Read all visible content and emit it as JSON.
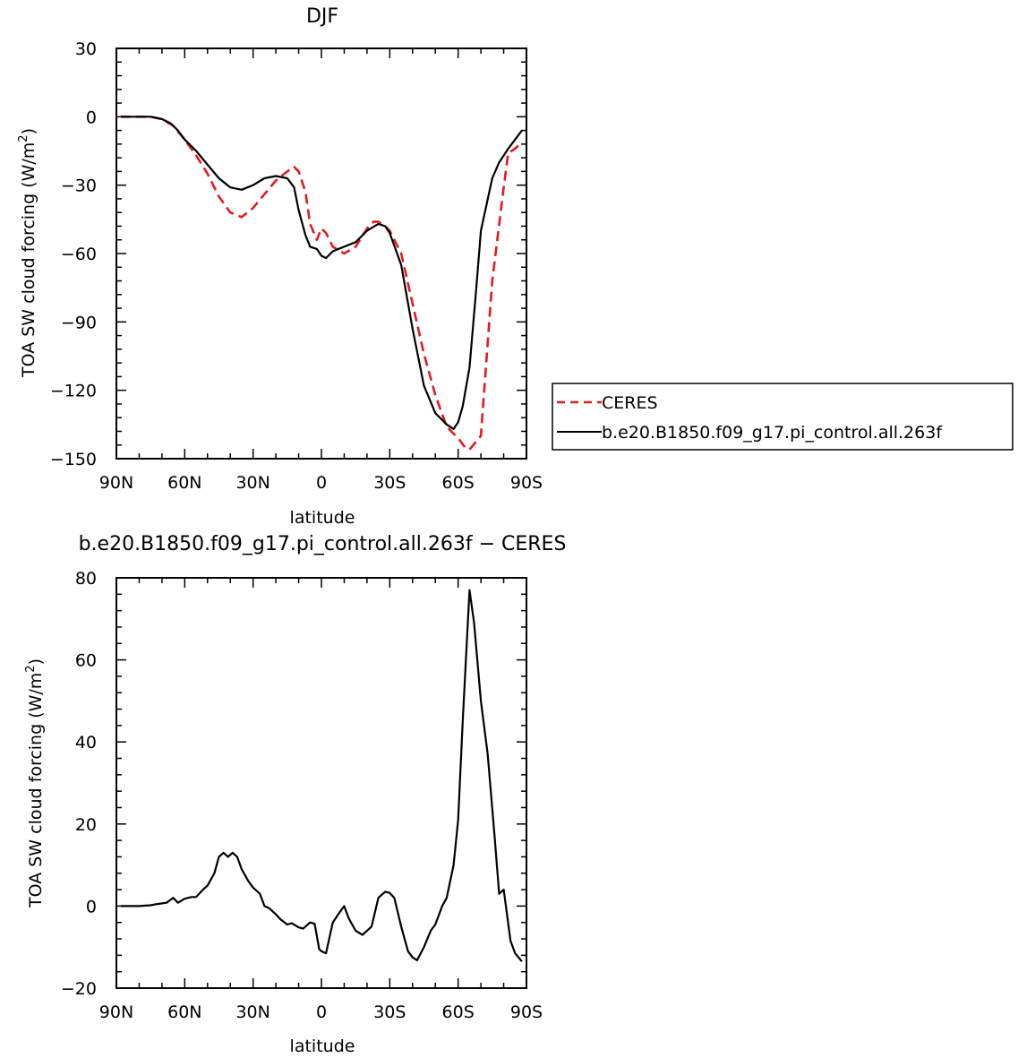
{
  "chart_data": [
    {
      "type": "line",
      "title": "DJF",
      "xlabel": "latitude",
      "ylabel": "TOA SW cloud forcing (W/m²)",
      "ylabel_main": "TOA SW cloud forcing (W/m",
      "ylabel_sup": "2",
      "ylabel_close": ")",
      "xlim": [
        -90,
        90
      ],
      "ylim": [
        -150,
        30
      ],
      "xticks": [
        -90,
        -60,
        -30,
        0,
        30,
        60,
        90
      ],
      "xtick_labels": [
        "90N",
        "60N",
        "30N",
        "0",
        "30S",
        "60S",
        "90S"
      ],
      "yticks": [
        30,
        0,
        -30,
        -60,
        -90,
        -120,
        -150
      ],
      "ytick_labels": [
        "30",
        "0",
        "−30",
        "−60",
        "−90",
        "−120",
        "−150"
      ],
      "legend_position": "right",
      "series": [
        {
          "name": "CERES",
          "color": "#e31a1c",
          "dash": "dashed",
          "x": [
            -88,
            -80,
            -75,
            -70,
            -65,
            -60,
            -55,
            -50,
            -45,
            -40,
            -35,
            -30,
            -25,
            -20,
            -15,
            -12,
            -10,
            -7,
            -5,
            -2,
            0,
            2,
            5,
            10,
            15,
            20,
            23,
            25,
            28,
            30,
            35,
            40,
            45,
            50,
            55,
            60,
            63,
            65,
            70,
            75,
            80,
            82,
            85,
            88
          ],
          "y": [
            0,
            0,
            0,
            -1,
            -4,
            -10,
            -17,
            -25,
            -35,
            -42,
            -44,
            -40,
            -34,
            -28,
            -24,
            -22,
            -24,
            -33,
            -47,
            -54,
            -49,
            -51,
            -57,
            -60,
            -57,
            -49,
            -46,
            -46,
            -48,
            -50,
            -60,
            -82,
            -104,
            -122,
            -136,
            -141,
            -145,
            -146,
            -140,
            -72,
            -31,
            -16,
            -14,
            -11
          ]
        },
        {
          "name": "b.e20.B1850.f09_g17.pi_control.all.263f",
          "color": "#000000",
          "dash": "solid",
          "x": [
            -88,
            -80,
            -75,
            -70,
            -66,
            -63,
            -60,
            -55,
            -50,
            -45,
            -40,
            -35,
            -30,
            -25,
            -20,
            -15,
            -12,
            -10,
            -7,
            -5,
            -2,
            0,
            2,
            5,
            10,
            15,
            20,
            25,
            28,
            30,
            35,
            40,
            45,
            50,
            55,
            58,
            60,
            62,
            65,
            68,
            70,
            75,
            78,
            80,
            82,
            85,
            88
          ],
          "y": [
            0,
            0,
            0,
            -1,
            -3,
            -6,
            -10,
            -15,
            -21,
            -27,
            -31,
            -32,
            -30,
            -27,
            -26,
            -27,
            -31,
            -41,
            -52,
            -57,
            -58,
            -61,
            -62,
            -59,
            -57,
            -55,
            -50,
            -47,
            -48,
            -51,
            -65,
            -93,
            -118,
            -130,
            -135,
            -137,
            -134,
            -127,
            -110,
            -75,
            -50,
            -27,
            -20,
            -17,
            -14,
            -10,
            -6
          ]
        }
      ]
    },
    {
      "type": "line",
      "title": "b.e20.B1850.f09_g17.pi_control.all.263f  −  CERES",
      "xlabel": "latitude",
      "ylabel": "TOA SW cloud forcing (W/m²)",
      "ylabel_main": "TOA SW cloud forcing (W/m",
      "ylabel_sup": "2",
      "ylabel_close": ")",
      "xlim": [
        -90,
        90
      ],
      "ylim": [
        -20,
        80
      ],
      "xticks": [
        -90,
        -60,
        -30,
        0,
        30,
        60,
        90
      ],
      "xtick_labels": [
        "90N",
        "60N",
        "30N",
        "0",
        "30S",
        "60S",
        "90S"
      ],
      "yticks": [
        80,
        60,
        40,
        20,
        0,
        -20
      ],
      "ytick_labels": [
        "80",
        "60",
        "40",
        "20",
        "0",
        "−20"
      ],
      "series": [
        {
          "color": "#000000",
          "dash": "solid",
          "x": [
            -88,
            -80,
            -75,
            -72,
            -68,
            -65,
            -63,
            -60,
            -57,
            -55,
            -52,
            -50,
            -47,
            -45,
            -43,
            -41,
            -39,
            -37,
            -35,
            -32,
            -30,
            -27,
            -25,
            -23,
            -20,
            -18,
            -15,
            -13,
            -10,
            -8,
            -5,
            -3,
            -1,
            0,
            2,
            5,
            8,
            10,
            12,
            15,
            18,
            20,
            22,
            25,
            28,
            30,
            32,
            35,
            38,
            40,
            42,
            45,
            48,
            50,
            53,
            55,
            58,
            60,
            62,
            65,
            67,
            70,
            73,
            76,
            78,
            80,
            83,
            85,
            88
          ],
          "y": [
            0,
            0,
            0.2,
            0.5,
            0.8,
            2,
            0.8,
            1.8,
            2.2,
            2.2,
            4,
            5,
            8,
            12,
            13,
            12,
            13,
            12,
            9,
            6,
            4.5,
            3,
            0,
            -0.5,
            -2,
            -3.2,
            -4.5,
            -4.2,
            -5.2,
            -5.5,
            -4,
            -4.3,
            -10.5,
            -11,
            -11.5,
            -4,
            -1.5,
            0,
            -3,
            -6,
            -7,
            -6,
            -5,
            2,
            3.5,
            3.2,
            2,
            -5,
            -11,
            -12.5,
            -13.2,
            -10,
            -6,
            -4.5,
            0,
            2,
            10,
            21,
            45,
            77,
            69,
            50,
            37,
            17,
            3,
            4,
            -8.5,
            -11.5,
            -13.5
          ]
        }
      ]
    }
  ]
}
